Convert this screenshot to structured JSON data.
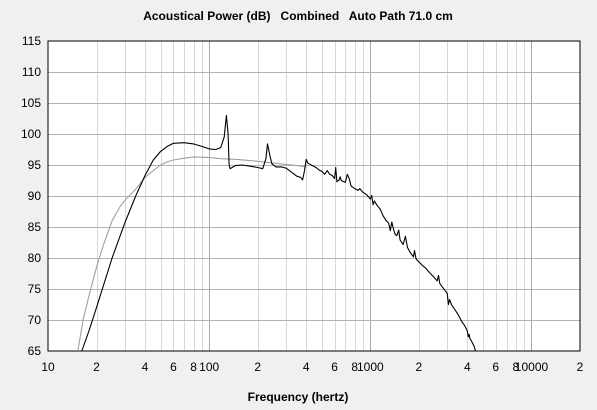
{
  "chart_data": {
    "type": "line",
    "title": "Acoustical Power (dB)   Combined   Auto Path 71.0 cm",
    "xlabel": "Frequency (hertz)",
    "ylabel": "",
    "x_scale": "log",
    "xlim": [
      10,
      20000
    ],
    "ylim": [
      65,
      115
    ],
    "grid": true,
    "x_ticks": [
      {
        "value": 10,
        "label": "10"
      },
      {
        "value": 20,
        "label": "2"
      },
      {
        "value": 40,
        "label": "4"
      },
      {
        "value": 60,
        "label": "6"
      },
      {
        "value": 80,
        "label": "8"
      },
      {
        "value": 100,
        "label": "100"
      },
      {
        "value": 200,
        "label": "2"
      },
      {
        "value": 400,
        "label": "4"
      },
      {
        "value": 600,
        "label": "6"
      },
      {
        "value": 800,
        "label": "8"
      },
      {
        "value": 1000,
        "label": "1000"
      },
      {
        "value": 2000,
        "label": "2"
      },
      {
        "value": 4000,
        "label": "4"
      },
      {
        "value": 6000,
        "label": "6"
      },
      {
        "value": 8000,
        "label": "8"
      },
      {
        "value": 10000,
        "label": "10000"
      },
      {
        "value": 20000,
        "label": "2"
      }
    ],
    "y_ticks": [
      {
        "value": 65,
        "label": "65"
      },
      {
        "value": 70,
        "label": "70"
      },
      {
        "value": 75,
        "label": "75"
      },
      {
        "value": 80,
        "label": "80"
      },
      {
        "value": 85,
        "label": "85"
      },
      {
        "value": 90,
        "label": "90"
      },
      {
        "value": 95,
        "label": "95"
      },
      {
        "value": 100,
        "label": "100"
      },
      {
        "value": 105,
        "label": "105"
      },
      {
        "value": 110,
        "label": "110"
      },
      {
        "value": 115,
        "label": "115"
      }
    ],
    "series": [
      {
        "color": "#000000",
        "points": [
          [
            16.2,
            65
          ],
          [
            18,
            68.3
          ],
          [
            20,
            72
          ],
          [
            25,
            80
          ],
          [
            30,
            85.7
          ],
          [
            35,
            90
          ],
          [
            40,
            93.3
          ],
          [
            45,
            95.8
          ],
          [
            50,
            97.2
          ],
          [
            55,
            98
          ],
          [
            60,
            98.5
          ],
          [
            70,
            98.6
          ],
          [
            80,
            98.4
          ],
          [
            90,
            98
          ],
          [
            100,
            97.6
          ],
          [
            110,
            97.5
          ],
          [
            118,
            97.8
          ],
          [
            124,
            99.5
          ],
          [
            128,
            103
          ],
          [
            131,
            100
          ],
          [
            133,
            95
          ],
          [
            135,
            94.4
          ],
          [
            145,
            94.9
          ],
          [
            160,
            95
          ],
          [
            180,
            94.8
          ],
          [
            200,
            94.6
          ],
          [
            215,
            94.4
          ],
          [
            225,
            96
          ],
          [
            230,
            98.4
          ],
          [
            238,
            96.5
          ],
          [
            245,
            95.2
          ],
          [
            260,
            94.7
          ],
          [
            280,
            94.7
          ],
          [
            300,
            94.5
          ],
          [
            330,
            93.7
          ],
          [
            350,
            93.2
          ],
          [
            370,
            93
          ],
          [
            380,
            92.6
          ],
          [
            390,
            94
          ],
          [
            400,
            95.9
          ],
          [
            410,
            95.3
          ],
          [
            430,
            95
          ],
          [
            460,
            94.6
          ],
          [
            480,
            94.2
          ],
          [
            500,
            94
          ],
          [
            520,
            93.5
          ],
          [
            540,
            94.1
          ],
          [
            560,
            93.5
          ],
          [
            580,
            93.3
          ],
          [
            600,
            92.8
          ],
          [
            610,
            94.6
          ],
          [
            620,
            92.3
          ],
          [
            640,
            92.6
          ],
          [
            650,
            93.1
          ],
          [
            660,
            92.5
          ],
          [
            700,
            92.2
          ],
          [
            720,
            93.5
          ],
          [
            740,
            92.8
          ],
          [
            760,
            91.6
          ],
          [
            800,
            91.2
          ],
          [
            840,
            90.9
          ],
          [
            860,
            91.2
          ],
          [
            900,
            90.6
          ],
          [
            940,
            90.3
          ],
          [
            980,
            89.8
          ],
          [
            1000,
            89.5
          ],
          [
            1020,
            90.1
          ],
          [
            1040,
            88.6
          ],
          [
            1060,
            89.2
          ],
          [
            1100,
            88.5
          ],
          [
            1150,
            87.9
          ],
          [
            1200,
            86.8
          ],
          [
            1250,
            86.1
          ],
          [
            1300,
            85.6
          ],
          [
            1330,
            84.4
          ],
          [
            1360,
            85.8
          ],
          [
            1390,
            84.7
          ],
          [
            1420,
            83.9
          ],
          [
            1460,
            83.6
          ],
          [
            1500,
            84.5
          ],
          [
            1530,
            82.9
          ],
          [
            1560,
            82.6
          ],
          [
            1600,
            82.2
          ],
          [
            1650,
            83.5
          ],
          [
            1700,
            81.7
          ],
          [
            1750,
            81.1
          ],
          [
            1800,
            80.6
          ],
          [
            1850,
            80.2
          ],
          [
            1880,
            81.2
          ],
          [
            1920,
            79.9
          ],
          [
            1960,
            79.6
          ],
          [
            2000,
            79.4
          ],
          [
            2100,
            78.8
          ],
          [
            2200,
            78.4
          ],
          [
            2300,
            77.8
          ],
          [
            2400,
            77.3
          ],
          [
            2500,
            76.8
          ],
          [
            2600,
            76.3
          ],
          [
            2650,
            77.2
          ],
          [
            2700,
            75.9
          ],
          [
            2800,
            75.3
          ],
          [
            2900,
            74.8
          ],
          [
            3000,
            74.3
          ],
          [
            3050,
            72.5
          ],
          [
            3100,
            73.3
          ],
          [
            3200,
            72.4
          ],
          [
            3300,
            71.9
          ],
          [
            3400,
            71.4
          ],
          [
            3500,
            70.9
          ],
          [
            3600,
            70.3
          ],
          [
            3700,
            69.7
          ],
          [
            3800,
            69.3
          ],
          [
            3900,
            68.8
          ],
          [
            4000,
            68.2
          ],
          [
            4050,
            67.3
          ],
          [
            4100,
            67.7
          ],
          [
            4150,
            67
          ],
          [
            4200,
            66.8
          ],
          [
            4300,
            66.3
          ],
          [
            4400,
            65.8
          ],
          [
            4500,
            65
          ]
        ]
      },
      {
        "color": "#a0a0a0",
        "points": [
          [
            15.3,
            65
          ],
          [
            16.5,
            70
          ],
          [
            18,
            74
          ],
          [
            20,
            78.5
          ],
          [
            22,
            82
          ],
          [
            25,
            86
          ],
          [
            28,
            88.3
          ],
          [
            30,
            89.3
          ],
          [
            35,
            91.1
          ],
          [
            40,
            93
          ],
          [
            45,
            94.1
          ],
          [
            50,
            95
          ],
          [
            55,
            95.5
          ],
          [
            60,
            95.8
          ],
          [
            70,
            96.1
          ],
          [
            80,
            96.3
          ],
          [
            100,
            96.2
          ],
          [
            120,
            96
          ],
          [
            150,
            95.9
          ],
          [
            200,
            95.6
          ],
          [
            250,
            95.3
          ],
          [
            300,
            95.1
          ],
          [
            350,
            94.9
          ],
          [
            400,
            94.7
          ]
        ]
      }
    ]
  }
}
